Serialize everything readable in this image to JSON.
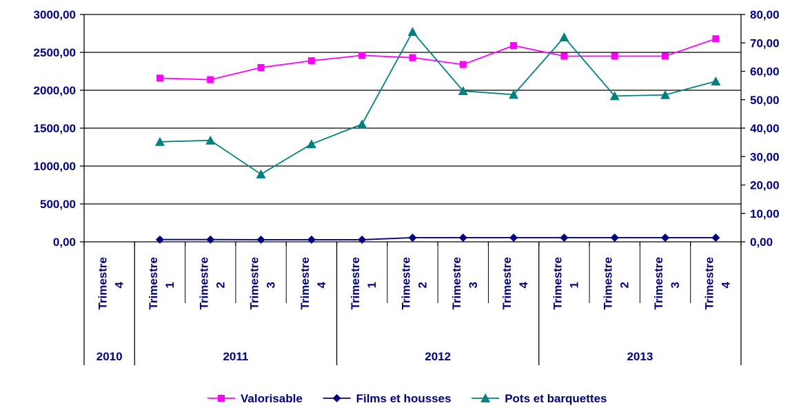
{
  "chart_data": {
    "type": "line",
    "title": "",
    "xlabel": "",
    "ylabel": "",
    "categories": [
      {
        "quarter": "Trimestre 4",
        "year": "2010"
      },
      {
        "quarter": "Trimestre 1",
        "year": "2011"
      },
      {
        "quarter": "Trimestre 2",
        "year": "2011"
      },
      {
        "quarter": "Trimestre 3",
        "year": "2011"
      },
      {
        "quarter": "Trimestre 4",
        "year": "2011"
      },
      {
        "quarter": "Trimestre 1",
        "year": "2012"
      },
      {
        "quarter": "Trimestre 2",
        "year": "2012"
      },
      {
        "quarter": "Trimestre 3",
        "year": "2012"
      },
      {
        "quarter": "Trimestre 4",
        "year": "2012"
      },
      {
        "quarter": "Trimestre 1",
        "year": "2013"
      },
      {
        "quarter": "Trimestre 2",
        "year": "2013"
      },
      {
        "quarter": "Trimestre 3",
        "year": "2013"
      },
      {
        "quarter": "Trimestre 4",
        "year": "2013"
      }
    ],
    "year_groups": [
      {
        "label": "2010",
        "count": 1
      },
      {
        "label": "2011",
        "count": 4
      },
      {
        "label": "2012",
        "count": 4
      },
      {
        "label": "2013",
        "count": 4
      }
    ],
    "y_left": {
      "min": 0,
      "max": 3000,
      "ticks": [
        "0,00",
        "500,00",
        "1000,00",
        "1500,00",
        "2000,00",
        "2500,00",
        "3000,00"
      ],
      "tick_values": [
        0,
        500,
        1000,
        1500,
        2000,
        2500,
        3000
      ]
    },
    "y_right": {
      "min": 0,
      "max": 80,
      "ticks": [
        "0,00",
        "10,00",
        "20,00",
        "30,00",
        "40,00",
        "50,00",
        "60,00",
        "70,00",
        "80,00"
      ],
      "tick_values": [
        0,
        10,
        20,
        30,
        40,
        50,
        60,
        70,
        80
      ]
    },
    "grid": true,
    "legend_position": "bottom",
    "series": [
      {
        "name": "Valorisable",
        "axis": "left",
        "color": "#FF00FF",
        "marker": "square",
        "values": [
          null,
          2160,
          2140,
          2300,
          2390,
          2460,
          2430,
          2340,
          2590,
          2450,
          2450,
          2450,
          2680
        ]
      },
      {
        "name": "Films et housses",
        "axis": "left",
        "color": "#000080",
        "marker": "diamond",
        "values": [
          null,
          30,
          30,
          28,
          28,
          28,
          55,
          55,
          55,
          55,
          55,
          55,
          55
        ]
      },
      {
        "name": "Pots et barquettes",
        "axis": "right",
        "color": "#008080",
        "marker": "triangle",
        "values": [
          null,
          35.2,
          35.7,
          23.8,
          34.4,
          41.4,
          73.9,
          53.1,
          51.8,
          72.0,
          51.3,
          51.7,
          56.5
        ]
      }
    ]
  },
  "colors": {
    "text": "#000080",
    "axis": "#000000"
  }
}
